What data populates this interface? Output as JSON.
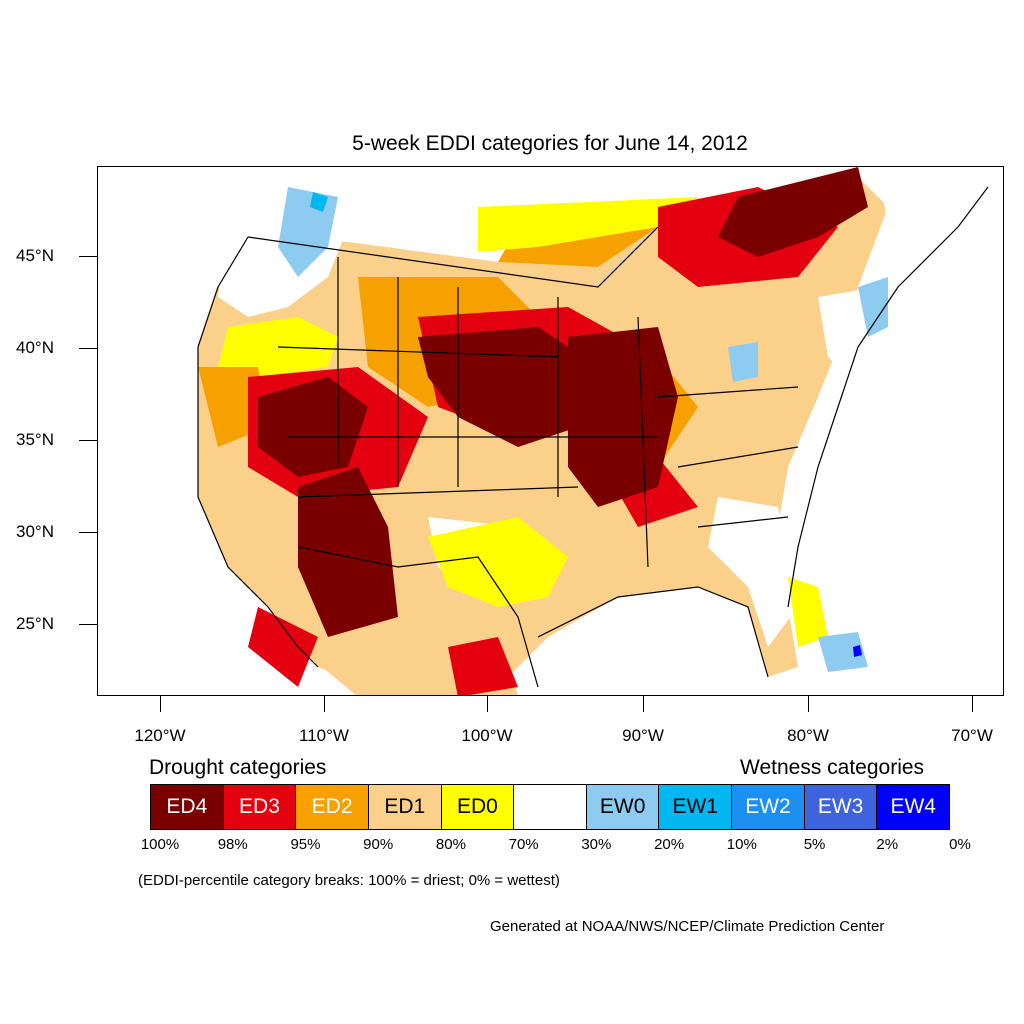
{
  "title": "5-week EDDI categories for June 14, 2012",
  "y_ticks": [
    "45°N",
    "40°N",
    "35°N",
    "30°N",
    "25°N"
  ],
  "x_ticks": [
    "120°W",
    "110°W",
    "100°W",
    "90°W",
    "80°W",
    "70°W"
  ],
  "legend": {
    "drought_heading": "Drought categories",
    "wetness_heading": "Wetness categories",
    "categories": [
      {
        "label": "ED4",
        "color": "#7a0000",
        "text_color": "#ffffff"
      },
      {
        "label": "ED3",
        "color": "#e3000f",
        "text_color": "#ffffff"
      },
      {
        "label": "ED2",
        "color": "#f7a100",
        "text_color": "#ffffff"
      },
      {
        "label": "ED1",
        "color": "#fbd08a",
        "text_color": "#000000"
      },
      {
        "label": "ED0",
        "color": "#ffff00",
        "text_color": "#000000"
      },
      {
        "label": "",
        "color": "#ffffff",
        "text_color": "#000000"
      },
      {
        "label": "EW0",
        "color": "#8ecbf0",
        "text_color": "#000000"
      },
      {
        "label": "EW1",
        "color": "#00b7f0",
        "text_color": "#000000"
      },
      {
        "label": "EW2",
        "color": "#1c8ff0",
        "text_color": "#ffffff"
      },
      {
        "label": "EW3",
        "color": "#3f63dc",
        "text_color": "#ffffff"
      },
      {
        "label": "EW4",
        "color": "#0000ff",
        "text_color": "#ffffff"
      }
    ],
    "breaks": [
      "100%",
      "98%",
      "95%",
      "90%",
      "80%",
      "70%",
      "30%",
      "20%",
      "10%",
      "5%",
      "2%",
      "0%"
    ]
  },
  "note": "(EDDI-percentile category breaks: 100% = driest; 0% = wettest)",
  "credit": "Generated at NOAA/NWS/NCEP/Climate Prediction Center"
}
